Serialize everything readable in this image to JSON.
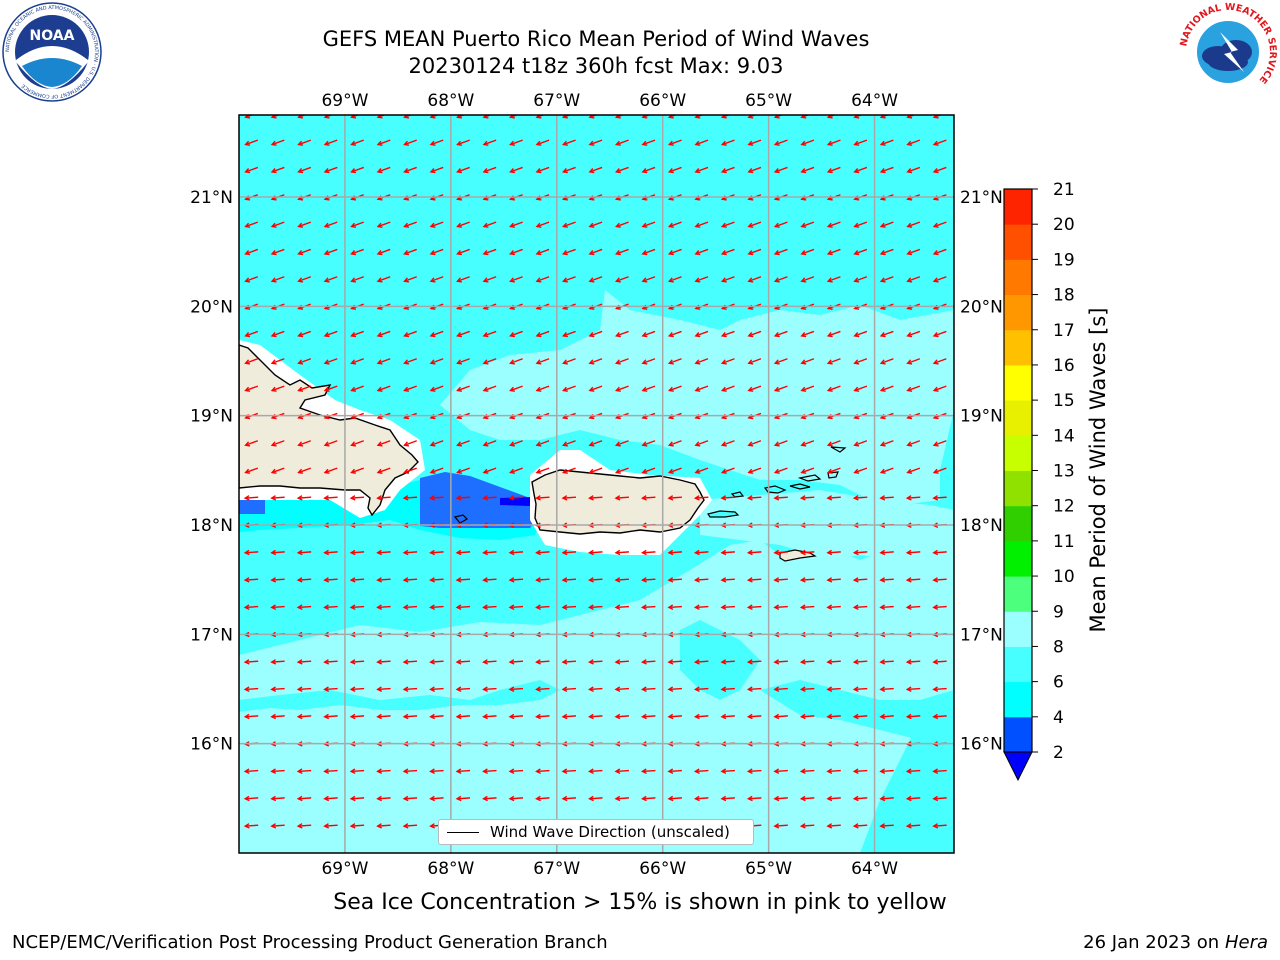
{
  "header": {
    "title_line1": "GEFS MEAN Puerto Rico Mean Period of Wind Waves",
    "title_line2": "20230124 t18z 360h fcst   Max: 9.03"
  },
  "logos": {
    "left": {
      "name": "noaa-logo",
      "text": "NOAA",
      "ring_text": "NATIONAL OCEANIC AND ATMOSPHERIC ADMINISTRATION · U.S. DEPARTMENT OF COMMERCE"
    },
    "right": {
      "name": "nws-logo",
      "ring_text": "NATIONAL WEATHER SERVICE"
    }
  },
  "map": {
    "lon_labels": [
      "69°W",
      "68°W",
      "67°W",
      "66°W",
      "65°W",
      "64°W"
    ],
    "lat_labels": [
      "21°N",
      "20°N",
      "19°N",
      "18°N",
      "17°N",
      "16°N"
    ],
    "lon_values": [
      -69,
      -68,
      -67,
      -66,
      -65,
      -64
    ],
    "lat_values": [
      21,
      20,
      19,
      18,
      17,
      16
    ],
    "extent": {
      "lon_min": -70,
      "lon_max": -63.25,
      "lat_min": 15,
      "lat_max": 21.75
    },
    "arrow_color": "#ff0000",
    "land_color": "#efecdc",
    "coast_color": "#000000"
  },
  "legend": {
    "label": "Wind Wave Direction (unscaled)"
  },
  "colorbar": {
    "title": "Mean Period of Wind Waves [s]",
    "tick_labels": [
      "21",
      "20",
      "19",
      "18",
      "17",
      "16",
      "15",
      "14",
      "13",
      "12",
      "11",
      "10",
      "9",
      "8",
      "6",
      "4",
      "2"
    ],
    "levels": [
      2,
      4,
      6,
      8,
      9,
      10,
      11,
      12,
      13,
      14,
      15,
      16,
      17,
      18,
      19,
      20,
      21
    ],
    "colors": [
      "#0050ff",
      "#00ffff",
      "#48ffff",
      "#9cffff",
      "#4cff7c",
      "#00f000",
      "#30d000",
      "#90e000",
      "#c8ff00",
      "#e8f000",
      "#ffff00",
      "#ffc000",
      "#ff9800",
      "#ff7800",
      "#ff5000",
      "#ff2400"
    ],
    "under_color": "#0000ff"
  },
  "note": "Sea Ice Concentration > 15% is shown in pink to yellow",
  "footer": {
    "left": "NCEP/EMC/Verification Post Processing Product Generation Branch",
    "right_prefix": "26 Jan 2023 on ",
    "right_machine": "Hera"
  }
}
